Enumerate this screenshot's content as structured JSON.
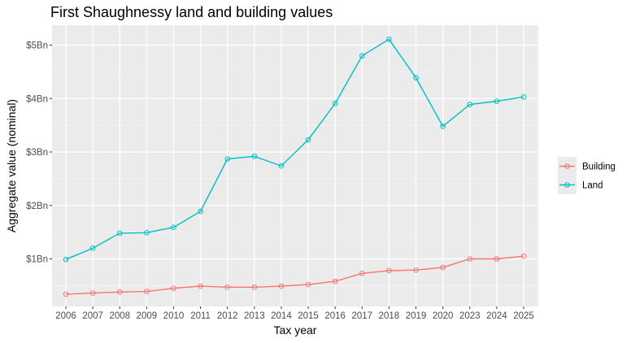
{
  "chart_data": {
    "type": "line",
    "title": "First Shaughnessy land and building values",
    "xlabel": "Tax year",
    "ylabel": "Aggregate value (nominal)",
    "categories": [
      "2006",
      "2007",
      "2008",
      "2009",
      "2010",
      "2011",
      "2012",
      "2013",
      "2014",
      "2015",
      "2016",
      "2017",
      "2018",
      "2019",
      "2020",
      "2023",
      "2024",
      "2025"
    ],
    "y_ticks": [
      {
        "value": 1,
        "label": "$1Bn"
      },
      {
        "value": 2,
        "label": "$2Bn"
      },
      {
        "value": 3,
        "label": "$3Bn"
      },
      {
        "value": 4,
        "label": "$4Bn"
      },
      {
        "value": 5,
        "label": "$5Bn"
      }
    ],
    "y_unit": "billions of dollars",
    "ylim": [
      0.15,
      5.25
    ],
    "grid": true,
    "legend_position": "right",
    "series": [
      {
        "name": "Building",
        "color": "#F8766D",
        "values": [
          0.34,
          0.36,
          0.38,
          0.39,
          0.45,
          0.49,
          0.47,
          0.47,
          0.49,
          0.52,
          0.58,
          0.73,
          0.78,
          0.79,
          0.84,
          1.0,
          1.0,
          1.05
        ]
      },
      {
        "name": "Land",
        "color": "#00BFC4",
        "values": [
          0.99,
          1.2,
          1.48,
          1.49,
          1.59,
          1.89,
          2.87,
          2.92,
          2.74,
          3.23,
          3.91,
          4.8,
          5.11,
          4.39,
          3.48,
          3.89,
          3.95,
          4.03
        ]
      }
    ]
  }
}
